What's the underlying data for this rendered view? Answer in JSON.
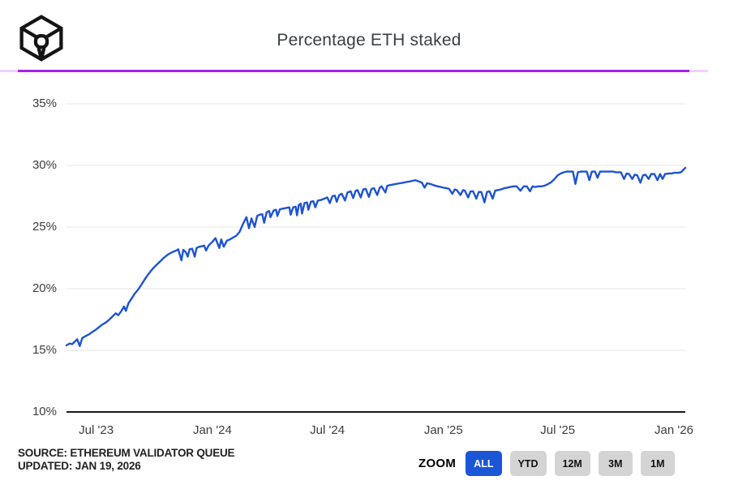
{
  "header": {
    "title": "Percentage ETH staked",
    "logo": "the-block-cube-logo"
  },
  "footer": {
    "source_line": "SOURCE: ETHEREUM VALIDATOR QUEUE",
    "updated_line": "UPDATED: JAN 19, 2026"
  },
  "zoom": {
    "label": "ZOOM",
    "buttons": [
      {
        "label": "ALL",
        "active": true
      },
      {
        "label": "YTD",
        "active": false
      },
      {
        "label": "12M",
        "active": false
      },
      {
        "label": "3M",
        "active": false
      },
      {
        "label": "1M",
        "active": false
      }
    ]
  },
  "colors": {
    "line": "#1d53d2",
    "accent_bar": "#a521e8",
    "accent_bar_light": "#eed2f8",
    "active_button_bg": "#1a56d6",
    "active_button_text": "#ffffff",
    "inactive_button_bg": "#d4d4d4",
    "inactive_button_text": "#111111",
    "grid": "#e7e7e7",
    "axis": "#1b1b1b",
    "tick_text": "#3c3c3c",
    "title_text": "#3c4043"
  },
  "chart_data": {
    "type": "line",
    "title": "Percentage ETH staked",
    "xlabel": "",
    "ylabel": "",
    "ylim": [
      10,
      35
    ],
    "x_range": [
      "2023-05-15",
      "2026-01-19"
    ],
    "grid": "horizontal-only",
    "legend": "none",
    "y_ticks": [
      {
        "label": "35%",
        "value": 35
      },
      {
        "label": "30%",
        "value": 30
      },
      {
        "label": "25%",
        "value": 25
      },
      {
        "label": "20%",
        "value": 20
      },
      {
        "label": "15%",
        "value": 15
      },
      {
        "label": "10%",
        "value": 10
      }
    ],
    "x_ticks": [
      {
        "label": "Jul '23",
        "date": "2023-07-01"
      },
      {
        "label": "Jan '24",
        "date": "2024-01-01"
      },
      {
        "label": "Jul '24",
        "date": "2024-07-01"
      },
      {
        "label": "Jan '25",
        "date": "2025-01-01"
      },
      {
        "label": "Jul '25",
        "date": "2025-07-01"
      },
      {
        "label": "Jan '26",
        "date": "2026-01-01"
      }
    ],
    "series": [
      {
        "name": "Percentage ETH staked",
        "color": "#1d53d2",
        "unit": "%",
        "points": [
          [
            "2023-05-15",
            15.4
          ],
          [
            "2023-05-20",
            15.55
          ],
          [
            "2023-05-24",
            15.5
          ],
          [
            "2023-05-28",
            15.7
          ],
          [
            "2023-06-01",
            15.9
          ],
          [
            "2023-06-05",
            15.35
          ],
          [
            "2023-06-09",
            16.0
          ],
          [
            "2023-06-14",
            16.15
          ],
          [
            "2023-06-20",
            16.3
          ],
          [
            "2023-06-25",
            16.5
          ],
          [
            "2023-07-01",
            16.7
          ],
          [
            "2023-07-06",
            16.9
          ],
          [
            "2023-07-11",
            17.1
          ],
          [
            "2023-07-16",
            17.25
          ],
          [
            "2023-07-22",
            17.5
          ],
          [
            "2023-07-28",
            17.8
          ],
          [
            "2023-08-01",
            18.0
          ],
          [
            "2023-08-05",
            17.85
          ],
          [
            "2023-08-10",
            18.2
          ],
          [
            "2023-08-14",
            18.55
          ],
          [
            "2023-08-17",
            18.2
          ],
          [
            "2023-08-21",
            18.8
          ],
          [
            "2023-08-26",
            19.2
          ],
          [
            "2023-08-31",
            19.6
          ],
          [
            "2023-09-05",
            19.9
          ],
          [
            "2023-09-09",
            20.2
          ],
          [
            "2023-09-14",
            20.6
          ],
          [
            "2023-09-19",
            21.0
          ],
          [
            "2023-09-25",
            21.4
          ],
          [
            "2023-09-30",
            21.7
          ],
          [
            "2023-10-05",
            21.95
          ],
          [
            "2023-10-10",
            22.2
          ],
          [
            "2023-10-16",
            22.5
          ],
          [
            "2023-10-22",
            22.75
          ],
          [
            "2023-10-27",
            22.9
          ],
          [
            "2023-10-31",
            23.0
          ],
          [
            "2023-11-05",
            23.1
          ],
          [
            "2023-11-08",
            23.2
          ],
          [
            "2023-11-13",
            22.3
          ],
          [
            "2023-11-16",
            23.15
          ],
          [
            "2023-11-20",
            22.95
          ],
          [
            "2023-11-23",
            22.6
          ],
          [
            "2023-11-26",
            23.2
          ],
          [
            "2023-11-30",
            23.25
          ],
          [
            "2023-12-04",
            22.6
          ],
          [
            "2023-12-07",
            23.3
          ],
          [
            "2023-12-11",
            23.4
          ],
          [
            "2023-12-16",
            23.45
          ],
          [
            "2023-12-19",
            23.5
          ],
          [
            "2023-12-22",
            23.1
          ],
          [
            "2023-12-26",
            23.5
          ],
          [
            "2024-01-01",
            23.8
          ],
          [
            "2024-01-06",
            24.1
          ],
          [
            "2024-01-12",
            23.3
          ],
          [
            "2024-01-15",
            24.0
          ],
          [
            "2024-01-19",
            23.4
          ],
          [
            "2024-01-24",
            23.9
          ],
          [
            "2024-01-29",
            24.0
          ],
          [
            "2024-02-03",
            24.15
          ],
          [
            "2024-02-08",
            24.3
          ],
          [
            "2024-02-13",
            24.6
          ],
          [
            "2024-02-19",
            25.3
          ],
          [
            "2024-02-24",
            25.8
          ],
          [
            "2024-02-28",
            24.9
          ],
          [
            "2024-03-03",
            25.7
          ],
          [
            "2024-03-08",
            25.0
          ],
          [
            "2024-03-12",
            25.9
          ],
          [
            "2024-03-16",
            26.0
          ],
          [
            "2024-03-20",
            26.05
          ],
          [
            "2024-03-23",
            25.35
          ],
          [
            "2024-03-27",
            26.2
          ],
          [
            "2024-03-31",
            26.3
          ],
          [
            "2024-04-02",
            25.8
          ],
          [
            "2024-04-07",
            26.35
          ],
          [
            "2024-04-11",
            26.4
          ],
          [
            "2024-04-13",
            25.9
          ],
          [
            "2024-04-17",
            26.45
          ],
          [
            "2024-04-22",
            26.5
          ],
          [
            "2024-04-27",
            26.55
          ],
          [
            "2024-05-02",
            26.6
          ],
          [
            "2024-05-04",
            26.0
          ],
          [
            "2024-05-08",
            26.6
          ],
          [
            "2024-05-12",
            26.65
          ],
          [
            "2024-05-14",
            25.95
          ],
          [
            "2024-05-17",
            26.8
          ],
          [
            "2024-05-20",
            26.9
          ],
          [
            "2024-05-22",
            26.1
          ],
          [
            "2024-05-26",
            26.95
          ],
          [
            "2024-05-30",
            27.0
          ],
          [
            "2024-06-01",
            26.4
          ],
          [
            "2024-06-05",
            27.05
          ],
          [
            "2024-06-09",
            27.1
          ],
          [
            "2024-06-12",
            26.6
          ],
          [
            "2024-06-16",
            27.15
          ],
          [
            "2024-06-21",
            27.2
          ],
          [
            "2024-06-26",
            27.3
          ],
          [
            "2024-07-01",
            27.4
          ],
          [
            "2024-07-05",
            26.95
          ],
          [
            "2024-07-09",
            27.5
          ],
          [
            "2024-07-13",
            27.55
          ],
          [
            "2024-07-16",
            27.05
          ],
          [
            "2024-07-20",
            27.6
          ],
          [
            "2024-07-24",
            27.7
          ],
          [
            "2024-07-29",
            27.15
          ],
          [
            "2024-08-02",
            27.8
          ],
          [
            "2024-08-07",
            27.9
          ],
          [
            "2024-08-11",
            27.35
          ],
          [
            "2024-08-15",
            27.95
          ],
          [
            "2024-08-18",
            28.0
          ],
          [
            "2024-08-23",
            27.4
          ],
          [
            "2024-08-27",
            28.05
          ],
          [
            "2024-08-31",
            28.1
          ],
          [
            "2024-09-05",
            27.45
          ],
          [
            "2024-09-09",
            28.1
          ],
          [
            "2024-09-13",
            28.15
          ],
          [
            "2024-09-18",
            27.6
          ],
          [
            "2024-09-22",
            28.2
          ],
          [
            "2024-09-25",
            28.3
          ],
          [
            "2024-10-01",
            27.8
          ],
          [
            "2024-10-04",
            28.35
          ],
          [
            "2024-10-08",
            28.4
          ],
          [
            "2024-10-13",
            28.45
          ],
          [
            "2024-10-18",
            28.5
          ],
          [
            "2024-10-24",
            28.55
          ],
          [
            "2024-10-29",
            28.6
          ],
          [
            "2024-11-03",
            28.65
          ],
          [
            "2024-11-08",
            28.7
          ],
          [
            "2024-11-13",
            28.75
          ],
          [
            "2024-11-18",
            28.8
          ],
          [
            "2024-11-23",
            28.7
          ],
          [
            "2024-11-28",
            28.6
          ],
          [
            "2024-12-02",
            28.2
          ],
          [
            "2024-12-06",
            28.55
          ],
          [
            "2024-12-11",
            28.5
          ],
          [
            "2024-12-16",
            28.4
          ],
          [
            "2024-12-23",
            28.3
          ],
          [
            "2024-12-28",
            28.25
          ],
          [
            "2025-01-01",
            28.2
          ],
          [
            "2025-01-06",
            28.15
          ],
          [
            "2025-01-10",
            28.1
          ],
          [
            "2025-01-15",
            27.7
          ],
          [
            "2025-01-19",
            28.05
          ],
          [
            "2025-01-22",
            28.0
          ],
          [
            "2025-01-28",
            27.6
          ],
          [
            "2025-02-01",
            28.0
          ],
          [
            "2025-02-04",
            27.95
          ],
          [
            "2025-02-09",
            27.4
          ],
          [
            "2025-02-13",
            27.9
          ],
          [
            "2025-02-17",
            27.9
          ],
          [
            "2025-02-22",
            27.3
          ],
          [
            "2025-02-26",
            27.85
          ],
          [
            "2025-03-02",
            27.85
          ],
          [
            "2025-03-07",
            27.0
          ],
          [
            "2025-03-11",
            27.85
          ],
          [
            "2025-03-15",
            27.9
          ],
          [
            "2025-03-20",
            27.3
          ],
          [
            "2025-03-24",
            27.95
          ],
          [
            "2025-03-28",
            28.0
          ],
          [
            "2025-04-02",
            28.05
          ],
          [
            "2025-04-07",
            28.15
          ],
          [
            "2025-04-12",
            28.2
          ],
          [
            "2025-04-17",
            28.25
          ],
          [
            "2025-04-22",
            28.3
          ],
          [
            "2025-04-27",
            28.3
          ],
          [
            "2025-05-03",
            27.95
          ],
          [
            "2025-05-08",
            28.3
          ],
          [
            "2025-05-13",
            28.3
          ],
          [
            "2025-05-18",
            27.9
          ],
          [
            "2025-05-22",
            28.3
          ],
          [
            "2025-05-26",
            28.25
          ],
          [
            "2025-05-31",
            28.3
          ],
          [
            "2025-06-05",
            28.3
          ],
          [
            "2025-06-10",
            28.35
          ],
          [
            "2025-06-16",
            28.5
          ],
          [
            "2025-06-21",
            28.65
          ],
          [
            "2025-06-26",
            28.9
          ],
          [
            "2025-07-01",
            29.2
          ],
          [
            "2025-07-06",
            29.35
          ],
          [
            "2025-07-11",
            29.45
          ],
          [
            "2025-07-15",
            29.5
          ],
          [
            "2025-07-20",
            29.5
          ],
          [
            "2025-07-25",
            29.5
          ],
          [
            "2025-07-29",
            28.5
          ],
          [
            "2025-08-02",
            29.45
          ],
          [
            "2025-08-07",
            29.5
          ],
          [
            "2025-08-12",
            29.5
          ],
          [
            "2025-08-16",
            29.5
          ],
          [
            "2025-08-20",
            28.8
          ],
          [
            "2025-08-24",
            29.5
          ],
          [
            "2025-08-29",
            29.5
          ],
          [
            "2025-09-02",
            29.0
          ],
          [
            "2025-09-06",
            29.5
          ],
          [
            "2025-09-13",
            29.5
          ],
          [
            "2025-09-19",
            29.5
          ],
          [
            "2025-09-26",
            29.5
          ],
          [
            "2025-10-02",
            29.45
          ],
          [
            "2025-10-09",
            29.45
          ],
          [
            "2025-10-14",
            28.9
          ],
          [
            "2025-10-18",
            29.35
          ],
          [
            "2025-10-22",
            29.3
          ],
          [
            "2025-10-27",
            28.9
          ],
          [
            "2025-10-31",
            29.25
          ],
          [
            "2025-11-04",
            29.2
          ],
          [
            "2025-11-09",
            28.6
          ],
          [
            "2025-11-13",
            29.2
          ],
          [
            "2025-11-17",
            29.25
          ],
          [
            "2025-11-22",
            28.9
          ],
          [
            "2025-11-26",
            29.3
          ],
          [
            "2025-12-01",
            29.3
          ],
          [
            "2025-12-06",
            28.8
          ],
          [
            "2025-12-10",
            29.3
          ],
          [
            "2025-12-14",
            28.9
          ],
          [
            "2025-12-18",
            29.3
          ],
          [
            "2025-12-24",
            29.35
          ],
          [
            "2025-12-29",
            29.35
          ],
          [
            "2026-01-01",
            29.4
          ],
          [
            "2026-01-05",
            29.4
          ],
          [
            "2026-01-08",
            29.4
          ],
          [
            "2026-01-12",
            29.45
          ],
          [
            "2026-01-15",
            29.6
          ],
          [
            "2026-01-19",
            29.8
          ]
        ]
      }
    ]
  }
}
